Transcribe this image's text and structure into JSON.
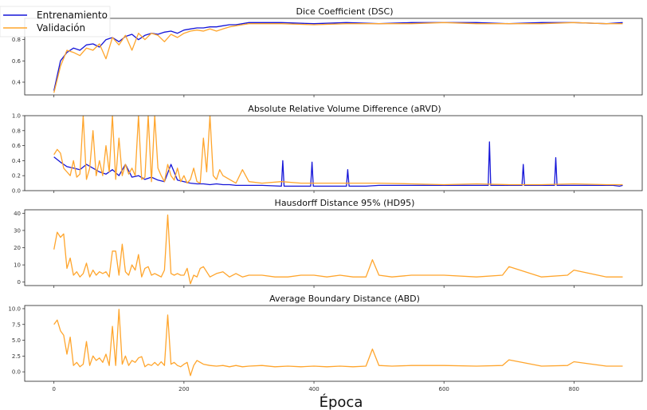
{
  "chart_data": [
    {
      "type": "line",
      "title": "Dice Coefficient (DSC)",
      "ylim": [
        0.28,
        1.0
      ],
      "yticks": [
        0.4,
        0.6,
        0.8
      ],
      "ytick_labels": [
        "0.4",
        "0.6",
        "0.8"
      ],
      "series": [
        {
          "name": "Entrenamiento",
          "color": "#1515d8",
          "x": [
            0,
            10,
            20,
            30,
            40,
            50,
            60,
            70,
            80,
            90,
            100,
            110,
            120,
            130,
            140,
            150,
            160,
            170,
            180,
            190,
            200,
            210,
            220,
            230,
            240,
            250,
            260,
            270,
            280,
            290,
            300,
            350,
            400,
            450,
            500,
            550,
            600,
            650,
            700,
            750,
            800,
            850,
            875
          ],
          "y": [
            0.32,
            0.6,
            0.68,
            0.72,
            0.7,
            0.75,
            0.76,
            0.73,
            0.8,
            0.82,
            0.78,
            0.83,
            0.85,
            0.8,
            0.84,
            0.86,
            0.85,
            0.87,
            0.88,
            0.86,
            0.89,
            0.9,
            0.91,
            0.91,
            0.92,
            0.92,
            0.93,
            0.94,
            0.94,
            0.95,
            0.96,
            0.96,
            0.95,
            0.96,
            0.95,
            0.96,
            0.96,
            0.96,
            0.95,
            0.96,
            0.96,
            0.95,
            0.96
          ]
        },
        {
          "name": "Validación",
          "color": "#ffa52c",
          "x": [
            0,
            10,
            20,
            30,
            40,
            50,
            60,
            70,
            80,
            90,
            100,
            110,
            120,
            130,
            140,
            150,
            160,
            170,
            180,
            190,
            200,
            210,
            220,
            230,
            240,
            250,
            260,
            270,
            280,
            290,
            300,
            350,
            400,
            450,
            500,
            550,
            600,
            650,
            700,
            750,
            800,
            850,
            875
          ],
          "y": [
            0.3,
            0.55,
            0.7,
            0.68,
            0.65,
            0.72,
            0.7,
            0.76,
            0.62,
            0.82,
            0.75,
            0.84,
            0.7,
            0.86,
            0.8,
            0.86,
            0.84,
            0.78,
            0.85,
            0.82,
            0.86,
            0.88,
            0.89,
            0.88,
            0.9,
            0.88,
            0.9,
            0.92,
            0.93,
            0.94,
            0.95,
            0.95,
            0.94,
            0.95,
            0.95,
            0.95,
            0.96,
            0.95,
            0.95,
            0.95,
            0.96,
            0.95,
            0.95
          ]
        }
      ]
    },
    {
      "type": "line",
      "title": "Absolute Relative Volume Difference (aRVD)",
      "ylim": [
        0.0,
        1.0
      ],
      "yticks": [
        0.0,
        0.2,
        0.4,
        0.6,
        0.8,
        1.0
      ],
      "ytick_labels": [
        "0.0",
        "0.2",
        "0.4",
        "0.6",
        "0.8",
        "1.0"
      ],
      "series": [
        {
          "name": "Entrenamiento",
          "color": "#1515d8",
          "x": [
            0,
            10,
            20,
            30,
            40,
            50,
            60,
            70,
            80,
            90,
            100,
            110,
            120,
            130,
            140,
            150,
            160,
            170,
            180,
            190,
            200,
            210,
            220,
            230,
            240,
            250,
            260,
            270,
            280,
            290,
            300,
            320,
            350,
            352,
            354,
            380,
            395,
            397,
            399,
            420,
            450,
            452,
            454,
            480,
            500,
            550,
            600,
            650,
            668,
            670,
            672,
            700,
            720,
            722,
            724,
            750,
            770,
            772,
            774,
            780,
            800,
            860,
            870,
            875
          ],
          "y": [
            0.45,
            0.38,
            0.32,
            0.3,
            0.28,
            0.35,
            0.3,
            0.25,
            0.22,
            0.28,
            0.2,
            0.35,
            0.18,
            0.2,
            0.15,
            0.18,
            0.14,
            0.12,
            0.35,
            0.14,
            0.12,
            0.1,
            0.09,
            0.09,
            0.08,
            0.09,
            0.08,
            0.08,
            0.07,
            0.07,
            0.07,
            0.07,
            0.06,
            0.4,
            0.06,
            0.06,
            0.06,
            0.38,
            0.06,
            0.06,
            0.06,
            0.28,
            0.06,
            0.06,
            0.07,
            0.07,
            0.07,
            0.07,
            0.07,
            0.65,
            0.07,
            0.07,
            0.07,
            0.35,
            0.07,
            0.07,
            0.07,
            0.44,
            0.07,
            0.07,
            0.07,
            0.07,
            0.06,
            0.07
          ]
        },
        {
          "name": "Validación",
          "color": "#ffa52c",
          "x": [
            0,
            5,
            10,
            15,
            20,
            25,
            30,
            35,
            40,
            45,
            50,
            55,
            60,
            65,
            70,
            75,
            80,
            85,
            90,
            95,
            100,
            105,
            110,
            115,
            120,
            125,
            130,
            135,
            140,
            145,
            150,
            155,
            160,
            165,
            170,
            175,
            180,
            185,
            190,
            195,
            200,
            205,
            210,
            215,
            220,
            225,
            230,
            235,
            240,
            245,
            250,
            255,
            260,
            270,
            280,
            290,
            300,
            320,
            350,
            380,
            400,
            450,
            500,
            550,
            600,
            650,
            700,
            750,
            800,
            850,
            875
          ],
          "y": [
            0.48,
            0.55,
            0.5,
            0.3,
            0.25,
            0.2,
            0.4,
            0.18,
            0.22,
            1.0,
            0.15,
            0.3,
            0.8,
            0.2,
            0.4,
            0.2,
            0.6,
            0.25,
            1.0,
            0.15,
            0.7,
            0.2,
            0.35,
            0.22,
            0.3,
            0.2,
            1.0,
            0.15,
            0.18,
            1.0,
            0.12,
            1.0,
            0.3,
            0.2,
            0.12,
            0.35,
            0.2,
            0.14,
            0.3,
            0.12,
            0.2,
            0.1,
            0.15,
            0.3,
            0.12,
            0.1,
            0.7,
            0.25,
            1.0,
            0.2,
            0.15,
            0.28,
            0.2,
            0.15,
            0.1,
            0.28,
            0.12,
            0.1,
            0.12,
            0.1,
            0.1,
            0.1,
            0.1,
            0.09,
            0.08,
            0.09,
            0.08,
            0.08,
            0.09,
            0.08,
            0.08
          ]
        }
      ]
    },
    {
      "type": "line",
      "title": "Hausdorff Distance 95% (HD95)",
      "ylim": [
        -2,
        42
      ],
      "yticks": [
        0,
        10,
        20,
        30,
        40
      ],
      "ytick_labels": [
        "0",
        "10",
        "20",
        "30",
        "40"
      ],
      "series": [
        {
          "name": "Validación",
          "color": "#ffa52c",
          "x": [
            0,
            5,
            10,
            15,
            20,
            25,
            30,
            35,
            40,
            45,
            50,
            55,
            60,
            65,
            70,
            75,
            80,
            85,
            90,
            95,
            100,
            105,
            110,
            115,
            120,
            125,
            130,
            135,
            140,
            145,
            150,
            155,
            160,
            165,
            170,
            175,
            180,
            185,
            190,
            195,
            200,
            205,
            210,
            215,
            220,
            225,
            230,
            240,
            250,
            260,
            270,
            280,
            290,
            300,
            320,
            340,
            360,
            380,
            400,
            420,
            440,
            460,
            480,
            490,
            500,
            520,
            550,
            600,
            650,
            690,
            700,
            750,
            790,
            800,
            850,
            875
          ],
          "y": [
            19,
            29,
            26,
            28,
            8,
            14,
            4,
            6,
            3,
            5,
            11,
            3,
            7,
            4,
            6,
            5,
            6,
            3,
            18,
            18,
            4,
            22,
            6,
            4,
            10,
            7,
            16,
            3,
            8,
            9,
            4,
            5,
            4,
            3,
            7,
            39,
            5,
            4,
            5,
            4,
            4,
            8,
            -1,
            4,
            3,
            8,
            9,
            3,
            5,
            6,
            3,
            5,
            3,
            4,
            4,
            3,
            3,
            4,
            4,
            3,
            4,
            3,
            3,
            13,
            4,
            3,
            4,
            4,
            3,
            4,
            9,
            3,
            4,
            7,
            3,
            3
          ]
        }
      ]
    },
    {
      "type": "line",
      "title": "Average Boundary Distance (ABD)",
      "ylim": [
        -1.5,
        10.5
      ],
      "yticks": [
        0.0,
        2.5,
        5.0,
        7.5,
        10.0
      ],
      "ytick_labels": [
        "0.0",
        "2.5",
        "5.0",
        "7.5",
        "10.0"
      ],
      "series": [
        {
          "name": "Validación",
          "color": "#ffa52c",
          "x": [
            0,
            5,
            10,
            15,
            20,
            25,
            30,
            35,
            40,
            45,
            50,
            55,
            60,
            65,
            70,
            75,
            80,
            85,
            90,
            95,
            100,
            105,
            110,
            115,
            120,
            125,
            130,
            135,
            140,
            145,
            150,
            155,
            160,
            165,
            170,
            175,
            180,
            185,
            190,
            195,
            200,
            205,
            210,
            215,
            220,
            230,
            240,
            250,
            260,
            270,
            280,
            290,
            300,
            320,
            340,
            360,
            380,
            400,
            420,
            440,
            460,
            480,
            490,
            500,
            520,
            550,
            600,
            650,
            690,
            700,
            750,
            790,
            800,
            850,
            875
          ],
          "y": [
            7.5,
            8.2,
            6.5,
            5.8,
            2.8,
            5.5,
            1.0,
            1.5,
            0.8,
            1.2,
            4.8,
            1.0,
            2.5,
            1.8,
            2.2,
            1.5,
            2.8,
            1.0,
            7.2,
            1.0,
            9.9,
            1.2,
            2.5,
            1.0,
            1.8,
            1.5,
            2.2,
            2.4,
            0.8,
            1.2,
            1.0,
            1.5,
            1.0,
            1.6,
            1.0,
            9.0,
            1.2,
            1.5,
            1.0,
            0.8,
            1.2,
            1.5,
            -0.6,
            1.0,
            1.8,
            1.2,
            1.0,
            0.9,
            1.0,
            0.8,
            1.0,
            0.8,
            0.9,
            1.0,
            0.8,
            0.9,
            0.8,
            0.9,
            0.8,
            0.9,
            0.8,
            0.9,
            3.6,
            1.0,
            0.9,
            1.0,
            1.0,
            0.9,
            1.0,
            1.9,
            0.9,
            1.0,
            1.6,
            0.9,
            0.9
          ]
        }
      ]
    }
  ],
  "xaxis": {
    "xlim": [
      -45,
      905
    ],
    "ticks": [
      0,
      200,
      400,
      600,
      800
    ],
    "tick_labels": [
      "0",
      "200",
      "400",
      "600",
      "800"
    ],
    "label": "Época"
  },
  "legend": {
    "placement": "top-left",
    "entries": [
      {
        "label": "Entrenamiento",
        "color": "#1515d8"
      },
      {
        "label": "Validación",
        "color": "#ffa52c"
      }
    ]
  }
}
